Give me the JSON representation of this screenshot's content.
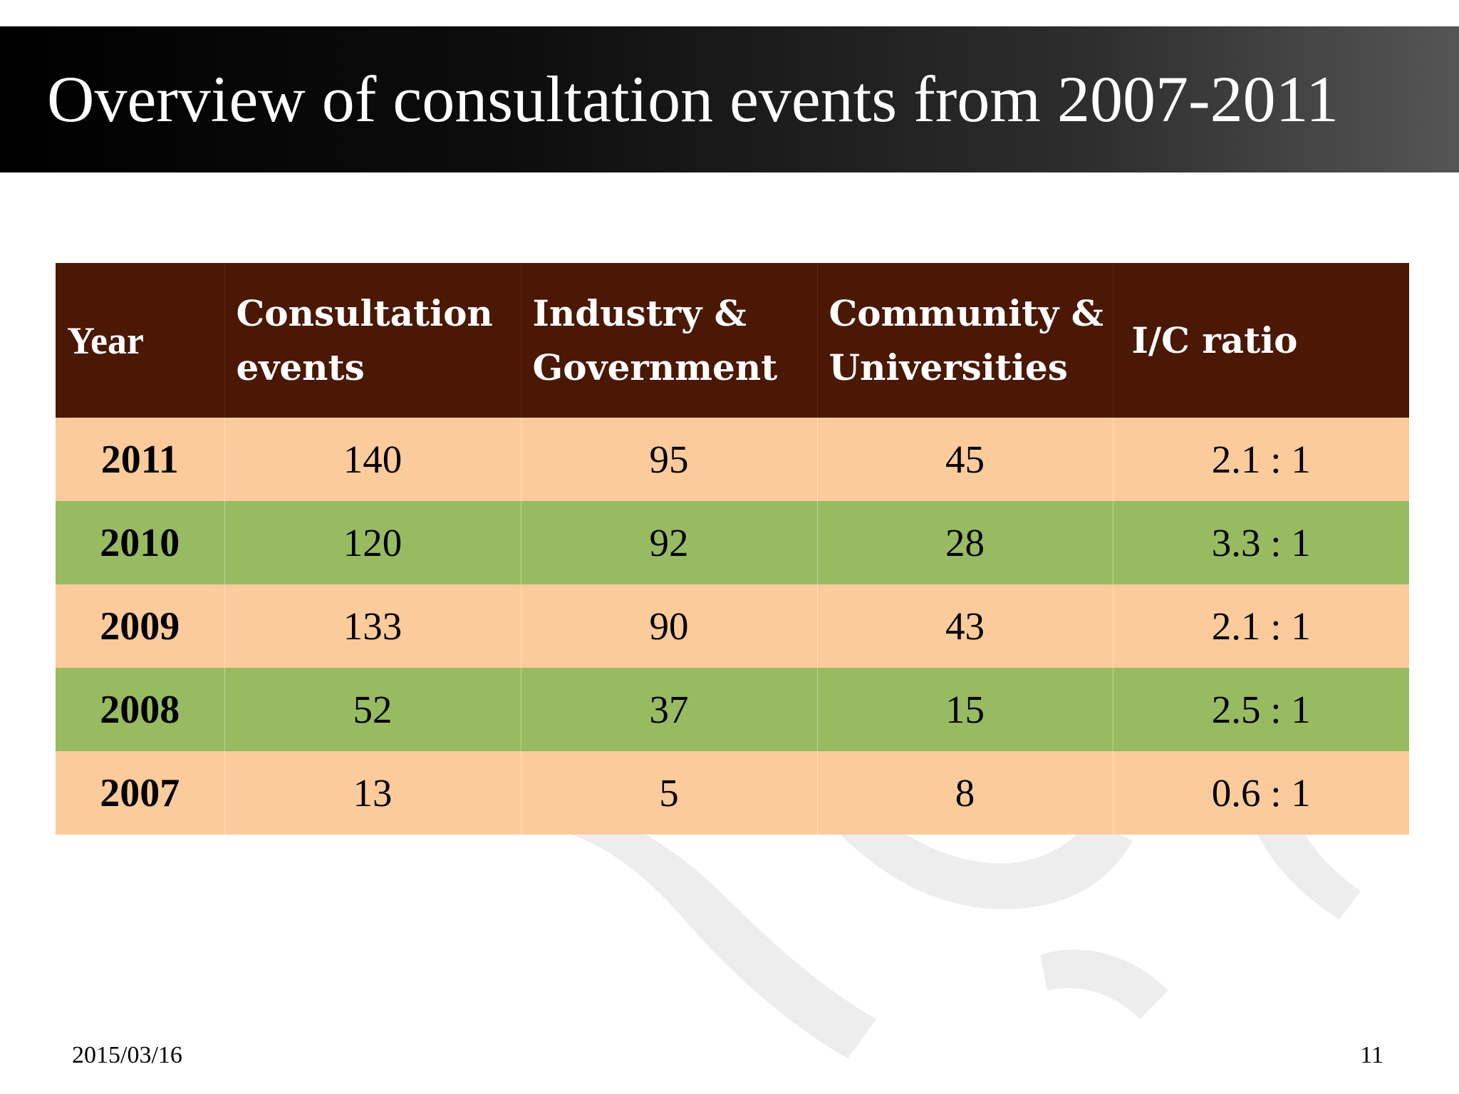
{
  "slide": {
    "title": "Overview of consultation events from 2007-2011"
  },
  "table": {
    "headers": {
      "year": "Year",
      "events_line1": "Consultation",
      "events_line2": "events",
      "industry_line1": "Industry &",
      "industry_line2": "Government",
      "community_line1": "Community &",
      "community_line2": "Universities",
      "ratio": "I/C ratio"
    },
    "rows": [
      {
        "year": "2011",
        "events": "140",
        "industry": "95",
        "community": "45",
        "ratio": "2.1 : 1"
      },
      {
        "year": "2010",
        "events": "120",
        "industry": "92",
        "community": "28",
        "ratio": "3.3 : 1"
      },
      {
        "year": "2009",
        "events": "133",
        "industry": "90",
        "community": "43",
        "ratio": "2.1 : 1"
      },
      {
        "year": "2008",
        "events": "52",
        "industry": "37",
        "community": "15",
        "ratio": "2.5 : 1"
      },
      {
        "year": "2007",
        "events": "13",
        "industry": "5",
        "community": "8",
        "ratio": "0.6 : 1"
      }
    ]
  },
  "footer": {
    "date": "2015/03/16",
    "page": "11"
  },
  "colors": {
    "header_bg": "#4a1804",
    "row_peach": "#fbcb9b",
    "row_green": "#98bb62"
  }
}
